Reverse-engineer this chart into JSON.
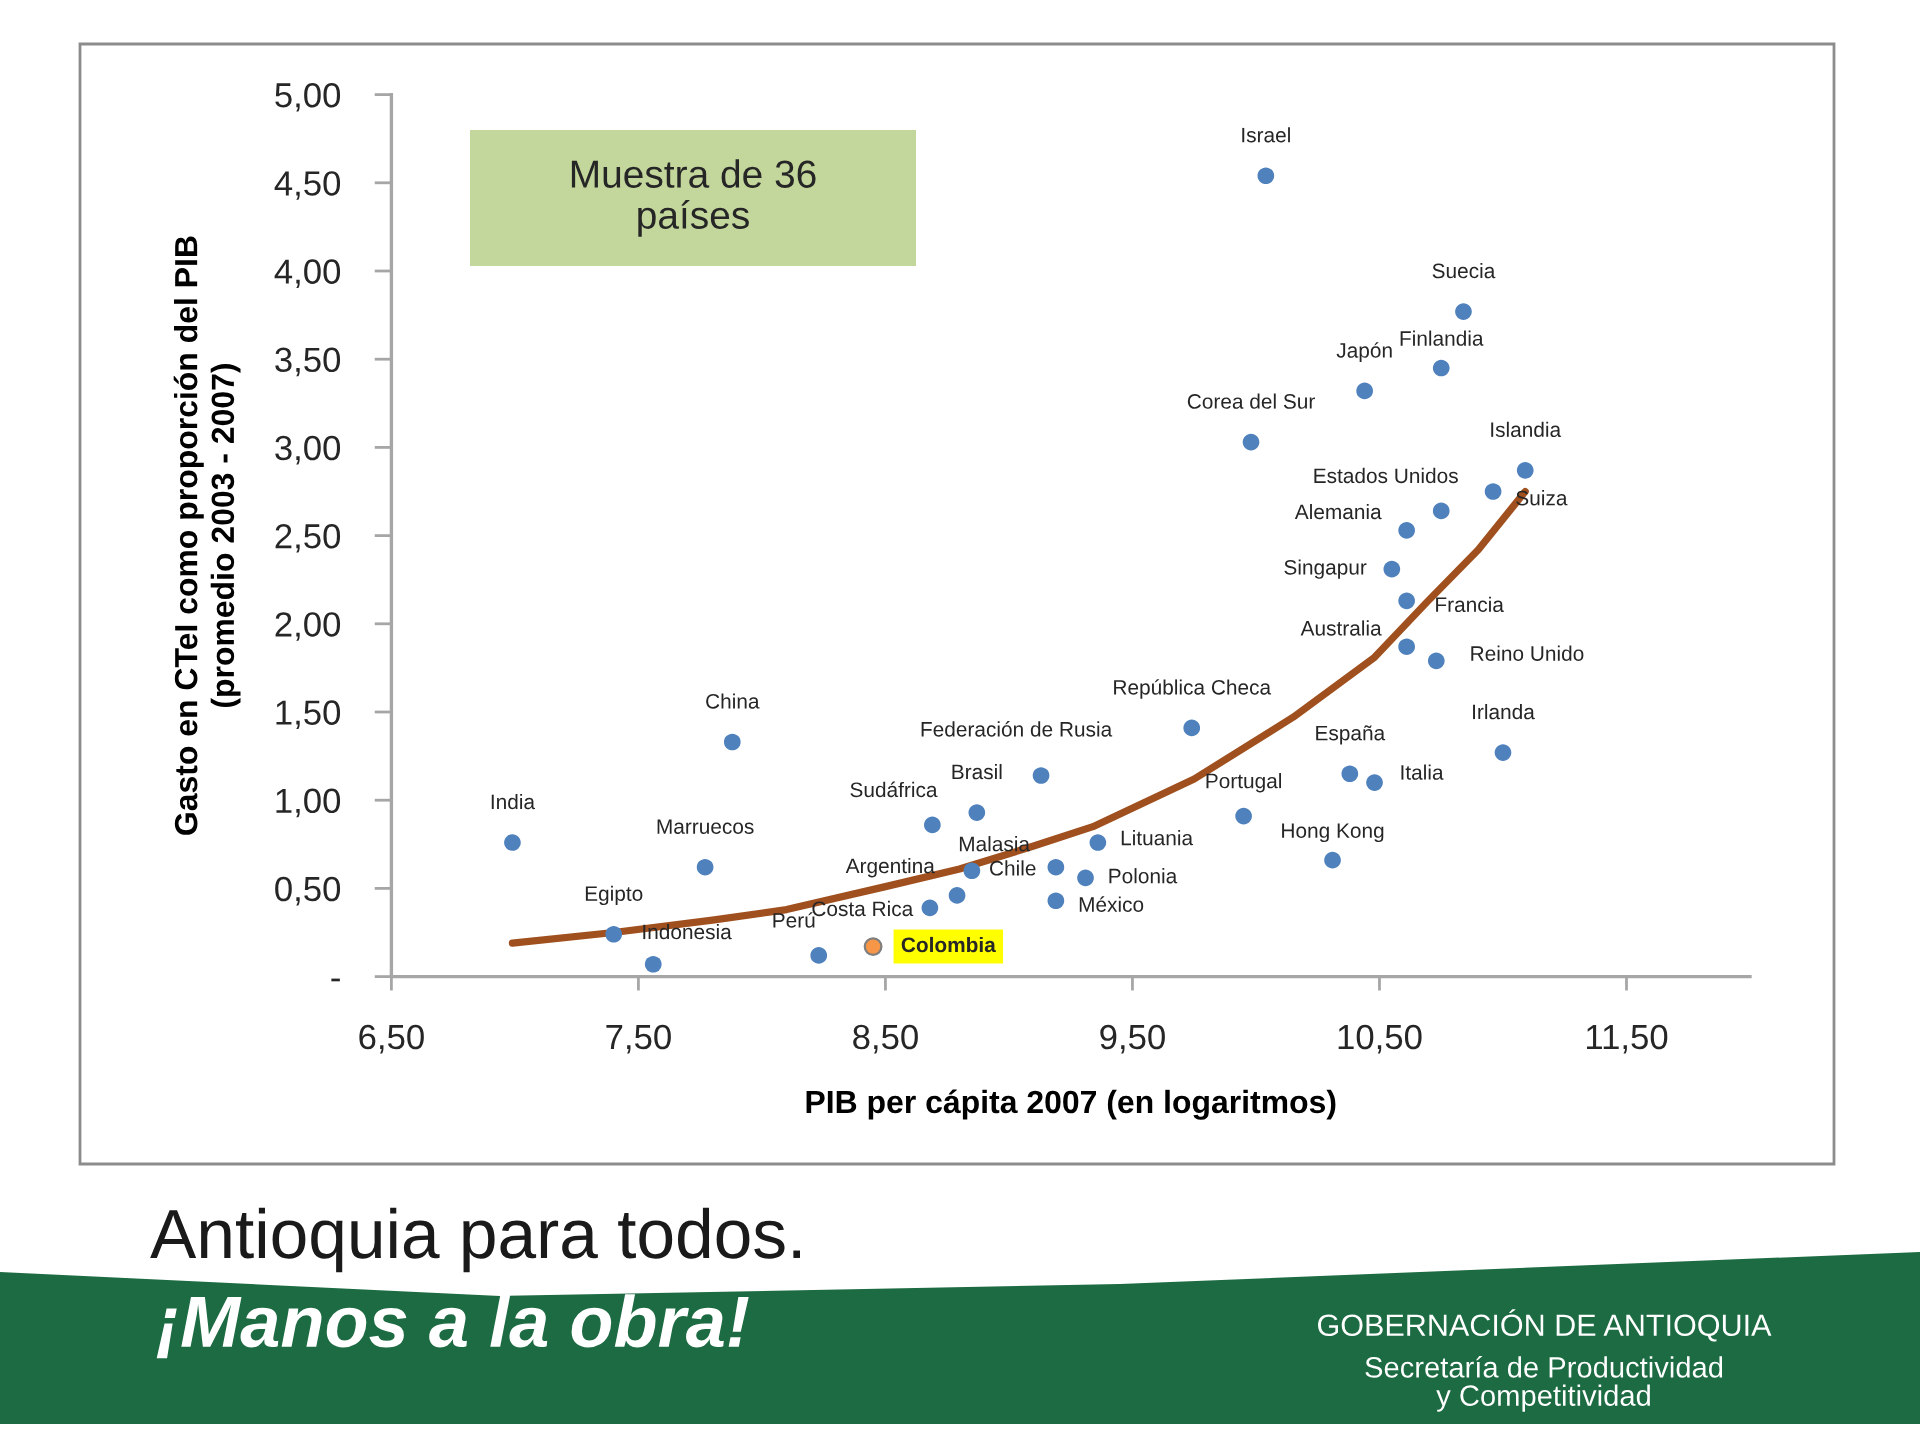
{
  "chart_data": {
    "type": "scatter",
    "xlabel": "PIB per cápita 2007 (en logaritmos)",
    "ylabel": "Gasto en CTeI como proporción del PIB\n(promedio 2003 - 2007)",
    "annotations": [
      "Muestra de 36\npaíses",
      "Antioquia para todos.",
      "¡Manos a la obra!",
      "GOBERNACIÓN DE ANTIOQUIA",
      "Secretaría de Productividad\ny Competitividad"
    ],
    "xlim": [
      6.5,
      12.0
    ],
    "ylim": [
      0,
      5
    ],
    "xticks": [
      {
        "value": 6.5,
        "label": "6,50"
      },
      {
        "value": 7.5,
        "label": "7,50"
      },
      {
        "value": 8.5,
        "label": "8,50"
      },
      {
        "value": 9.5,
        "label": "9,50"
      },
      {
        "value": 10.5,
        "label": "10,50"
      },
      {
        "value": 11.5,
        "label": "11,50"
      }
    ],
    "yticks": [
      {
        "value": 0,
        "label": "-"
      },
      {
        "value": 0.5,
        "label": "0,50"
      },
      {
        "value": 1.0,
        "label": "1,00"
      },
      {
        "value": 1.5,
        "label": "1,50"
      },
      {
        "value": 2.0,
        "label": "2,00"
      },
      {
        "value": 2.5,
        "label": "2,50"
      },
      {
        "value": 3.0,
        "label": "3,00"
      },
      {
        "value": 3.5,
        "label": "3,50"
      },
      {
        "value": 4.0,
        "label": "4,00"
      },
      {
        "value": 4.5,
        "label": "4,50"
      },
      {
        "value": 5.0,
        "label": "5,00"
      }
    ],
    "marker": "circle",
    "series": [
      {
        "name": "Israel",
        "color": "#4f81bd",
        "x": [
          10.04
        ],
        "values": [
          4.54
        ]
      },
      {
        "name": "Suecia",
        "color": "#4f81bd",
        "x": [
          10.84
        ],
        "values": [
          3.77
        ]
      },
      {
        "name": "Finlandia",
        "color": "#4f81bd",
        "x": [
          10.75
        ],
        "values": [
          3.45
        ]
      },
      {
        "name": "Japón",
        "color": "#4f81bd",
        "x": [
          10.44
        ],
        "values": [
          3.32
        ]
      },
      {
        "name": "Corea del Sur",
        "color": "#4f81bd",
        "x": [
          9.98
        ],
        "values": [
          3.03
        ]
      },
      {
        "name": "Islandia",
        "color": "#4f81bd",
        "x": [
          11.09
        ],
        "values": [
          2.87
        ]
      },
      {
        "name": "Estados Unidos",
        "color": "#4f81bd",
        "x": [
          10.75
        ],
        "values": [
          2.64
        ]
      },
      {
        "name": "Suiza",
        "color": "#4f81bd",
        "x": [
          10.96
        ],
        "values": [
          2.75
        ]
      },
      {
        "name": "Alemania",
        "color": "#4f81bd",
        "x": [
          10.61
        ],
        "values": [
          2.53
        ]
      },
      {
        "name": "Singapur",
        "color": "#4f81bd",
        "x": [
          10.55
        ],
        "values": [
          2.31
        ]
      },
      {
        "name": "Francia",
        "color": "#4f81bd",
        "x": [
          10.61
        ],
        "values": [
          2.13
        ]
      },
      {
        "name": "Australia",
        "color": "#4f81bd",
        "x": [
          10.61
        ],
        "values": [
          1.87
        ]
      },
      {
        "name": "Reino Unido",
        "color": "#4f81bd",
        "x": [
          10.73
        ],
        "values": [
          1.79
        ]
      },
      {
        "name": "República Checa",
        "color": "#4f81bd",
        "x": [
          9.74
        ],
        "values": [
          1.41
        ]
      },
      {
        "name": "Federación de Rusia",
        "color": "#4f81bd",
        "x": [
          9.13
        ],
        "values": [
          1.14
        ]
      },
      {
        "name": "Irlanda",
        "color": "#4f81bd",
        "x": [
          11.0
        ],
        "values": [
          1.27
        ]
      },
      {
        "name": "España",
        "color": "#4f81bd",
        "x": [
          10.38
        ],
        "values": [
          1.15
        ]
      },
      {
        "name": "Italia",
        "color": "#4f81bd",
        "x": [
          10.48
        ],
        "values": [
          1.1
        ]
      },
      {
        "name": "Brasil",
        "color": "#4f81bd",
        "x": [
          8.87
        ],
        "values": [
          0.93
        ]
      },
      {
        "name": "Portugal",
        "color": "#4f81bd",
        "x": [
          9.95
        ],
        "values": [
          0.91
        ]
      },
      {
        "name": "Sudáfrica",
        "color": "#4f81bd",
        "x": [
          8.69
        ],
        "values": [
          0.86
        ]
      },
      {
        "name": "Hong Kong",
        "color": "#4f81bd",
        "x": [
          10.31
        ],
        "values": [
          0.66
        ]
      },
      {
        "name": "Lituania",
        "color": "#4f81bd",
        "x": [
          9.36
        ],
        "values": [
          0.76
        ]
      },
      {
        "name": "Malasia",
        "color": "#4f81bd",
        "x": [
          8.85
        ],
        "values": [
          0.6
        ]
      },
      {
        "name": "Chile",
        "color": "#4f81bd",
        "x": [
          9.19
        ],
        "values": [
          0.62
        ]
      },
      {
        "name": "Polonia",
        "color": "#4f81bd",
        "x": [
          9.31
        ],
        "values": [
          0.56
        ]
      },
      {
        "name": "Argentina",
        "color": "#4f81bd",
        "x": [
          8.79
        ],
        "values": [
          0.46
        ]
      },
      {
        "name": "México",
        "color": "#4f81bd",
        "x": [
          9.19
        ],
        "values": [
          0.43
        ]
      },
      {
        "name": "China",
        "color": "#4f81bd",
        "x": [
          7.88
        ],
        "values": [
          1.33
        ]
      },
      {
        "name": "India",
        "color": "#4f81bd",
        "x": [
          6.99
        ],
        "values": [
          0.76
        ]
      },
      {
        "name": "Marruecos",
        "color": "#4f81bd",
        "x": [
          7.77
        ],
        "values": [
          0.62
        ]
      },
      {
        "name": "Egipto",
        "color": "#4f81bd",
        "x": [
          7.4
        ],
        "values": [
          0.24
        ]
      },
      {
        "name": "Indonesia",
        "color": "#4f81bd",
        "x": [
          7.56
        ],
        "values": [
          0.07
        ]
      },
      {
        "name": "Perú",
        "color": "#4f81bd",
        "x": [
          8.23
        ],
        "values": [
          0.12
        ]
      },
      {
        "name": "Costa Rica",
        "color": "#4f81bd",
        "x": [
          8.68
        ],
        "values": [
          0.39
        ]
      },
      {
        "name": "Colombia",
        "color": "#f79646",
        "x": [
          8.45
        ],
        "values": [
          0.17
        ]
      },
      {
        "type": "line",
        "marker": "none",
        "color": "#a0501e",
        "x": [
          6.99,
          7.4,
          7.8,
          8.1,
          8.5,
          8.8,
          9.1,
          9.34,
          9.75,
          10.15,
          10.48,
          10.69,
          10.9,
          11.09
        ],
        "values": [
          0.19,
          0.25,
          0.32,
          0.38,
          0.51,
          0.61,
          0.74,
          0.85,
          1.12,
          1.47,
          1.81,
          2.12,
          2.42,
          2.75
        ]
      }
    ]
  }
}
